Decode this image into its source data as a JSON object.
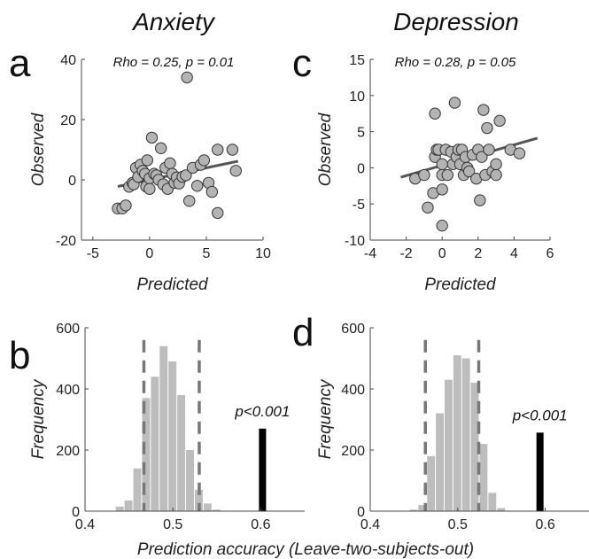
{
  "figure": {
    "column_titles": [
      "Anxiety",
      "Depression"
    ],
    "bottom_label": "Prediction accuracy (Leave-two-subjects-out)",
    "colors": {
      "marker_fill": "#b3b3b3",
      "marker_edge": "#333333",
      "fit_line": "#555555",
      "hist_bar": "#bdbdbd",
      "observed_bar": "#000000",
      "threshold_line": "#777777"
    }
  },
  "chart_data": [
    {
      "panel": "a",
      "type": "scatter",
      "annotation": "Rho = 0.25, p = 0.01",
      "xlabel": "Predicted",
      "ylabel": "Observed",
      "xlim": [
        -6,
        10
      ],
      "ylim": [
        -20,
        40
      ],
      "xticks": [
        -5,
        0,
        5,
        10
      ],
      "yticks": [
        -20,
        0,
        20,
        40
      ],
      "fit": {
        "x": [
          -2.8,
          7.8
        ],
        "y": [
          -2.2,
          6.2
        ]
      },
      "points": [
        [
          -2.8,
          -9.5
        ],
        [
          -2.4,
          -9.5
        ],
        [
          -2.1,
          -8.5
        ],
        [
          -1.8,
          -2.3
        ],
        [
          -1.5,
          -1.0
        ],
        [
          -1.4,
          -1.5
        ],
        [
          -1.2,
          4.0
        ],
        [
          -1.0,
          1.0
        ],
        [
          -0.8,
          5.0
        ],
        [
          -0.6,
          3.0
        ],
        [
          -0.4,
          2.0
        ],
        [
          -0.3,
          -2.2
        ],
        [
          -0.2,
          6.5
        ],
        [
          0.0,
          0.5
        ],
        [
          0.0,
          -3.0
        ],
        [
          0.2,
          14.0
        ],
        [
          0.4,
          2.0
        ],
        [
          0.6,
          1.5
        ],
        [
          0.8,
          0.0
        ],
        [
          1.0,
          10.5
        ],
        [
          1.2,
          -1.5
        ],
        [
          1.4,
          4.0
        ],
        [
          1.6,
          -3.0
        ],
        [
          1.8,
          5.5
        ],
        [
          2.0,
          2.0
        ],
        [
          2.2,
          -1.0
        ],
        [
          2.4,
          0.8
        ],
        [
          2.6,
          -1.2
        ],
        [
          2.9,
          1.0
        ],
        [
          3.2,
          1.5
        ],
        [
          3.3,
          34.0
        ],
        [
          3.5,
          -7.0
        ],
        [
          3.8,
          4.0
        ],
        [
          4.2,
          -2.0
        ],
        [
          4.5,
          5.0
        ],
        [
          4.8,
          6.5
        ],
        [
          5.2,
          -1.0
        ],
        [
          5.5,
          -4.0
        ],
        [
          6.0,
          10.0
        ],
        [
          6.0,
          -11.0
        ],
        [
          7.3,
          10.0
        ],
        [
          7.6,
          3.0
        ]
      ]
    },
    {
      "panel": "c",
      "type": "scatter",
      "annotation": "Rho = 0.28, p = 0.05",
      "xlabel": "Predicted",
      "ylabel": "Observed",
      "xlim": [
        -4,
        6
      ],
      "ylim": [
        -10,
        15
      ],
      "xticks": [
        -4,
        -2,
        0,
        2,
        4,
        6
      ],
      "yticks": [
        -10,
        -5,
        0,
        5,
        10,
        15
      ],
      "fit": {
        "x": [
          -2.3,
          5.3
        ],
        "y": [
          -1.3,
          4.1
        ]
      },
      "points": [
        [
          -1.5,
          -1.5
        ],
        [
          -1.0,
          -1.0
        ],
        [
          -0.8,
          -5.5
        ],
        [
          -0.5,
          -3.5
        ],
        [
          -0.4,
          1.5
        ],
        [
          -0.4,
          7.5
        ],
        [
          -0.3,
          2.5
        ],
        [
          -0.2,
          2.5
        ],
        [
          0.0,
          -1.0
        ],
        [
          0.0,
          -3.0
        ],
        [
          0.0,
          0.5
        ],
        [
          0.0,
          -8.0
        ],
        [
          0.2,
          2.5
        ],
        [
          0.3,
          -1.0
        ],
        [
          0.5,
          2.2
        ],
        [
          0.6,
          0.5
        ],
        [
          0.7,
          9.0
        ],
        [
          0.8,
          1.5
        ],
        [
          0.9,
          2.5
        ],
        [
          1.0,
          0.5
        ],
        [
          1.1,
          2.5
        ],
        [
          1.2,
          -1.0
        ],
        [
          1.3,
          1.5
        ],
        [
          1.4,
          0.0
        ],
        [
          1.5,
          -0.5
        ],
        [
          1.7,
          1.8
        ],
        [
          1.9,
          -1.5
        ],
        [
          2.0,
          2.5
        ],
        [
          2.1,
          -4.5
        ],
        [
          2.2,
          1.5
        ],
        [
          2.3,
          8.0
        ],
        [
          2.4,
          -1.0
        ],
        [
          2.5,
          5.5
        ],
        [
          2.6,
          2.5
        ],
        [
          2.8,
          -0.5
        ],
        [
          3.0,
          -1.0
        ],
        [
          3.0,
          0.5
        ],
        [
          3.2,
          6.5
        ],
        [
          3.8,
          2.5
        ],
        [
          4.3,
          2.0
        ]
      ]
    },
    {
      "panel": "b",
      "type": "bar",
      "xlabel": "",
      "ylabel": "Frequency",
      "xlim": [
        0.4,
        0.65
      ],
      "ylim": [
        0,
        600
      ],
      "xticks": [
        0.4,
        0.5,
        0.6
      ],
      "yticks": [
        0,
        200,
        400,
        600
      ],
      "bin_width": 0.01,
      "bin_centers": [
        0.44,
        0.45,
        0.46,
        0.47,
        0.48,
        0.49,
        0.5,
        0.51,
        0.52,
        0.53,
        0.54,
        0.55
      ],
      "counts": [
        15,
        35,
        140,
        370,
        440,
        540,
        490,
        380,
        200,
        70,
        25,
        5
      ],
      "thresholds": [
        0.467,
        0.53
      ],
      "observed": {
        "x": 0.602,
        "value": 270,
        "label": "p<0.001"
      }
    },
    {
      "panel": "d",
      "type": "bar",
      "xlabel": "",
      "ylabel": "Frequency",
      "xlim": [
        0.4,
        0.65
      ],
      "ylim": [
        0,
        600
      ],
      "xticks": [
        0.4,
        0.5,
        0.6
      ],
      "yticks": [
        0,
        200,
        400,
        600
      ],
      "bin_width": 0.01,
      "bin_centers": [
        0.45,
        0.46,
        0.47,
        0.48,
        0.49,
        0.5,
        0.51,
        0.52,
        0.53,
        0.54,
        0.55
      ],
      "counts": [
        5,
        20,
        180,
        320,
        430,
        510,
        500,
        420,
        220,
        60,
        10
      ],
      "thresholds": [
        0.463,
        0.524
      ],
      "observed": {
        "x": 0.594,
        "value": 257,
        "label": "p<0.001"
      }
    }
  ]
}
